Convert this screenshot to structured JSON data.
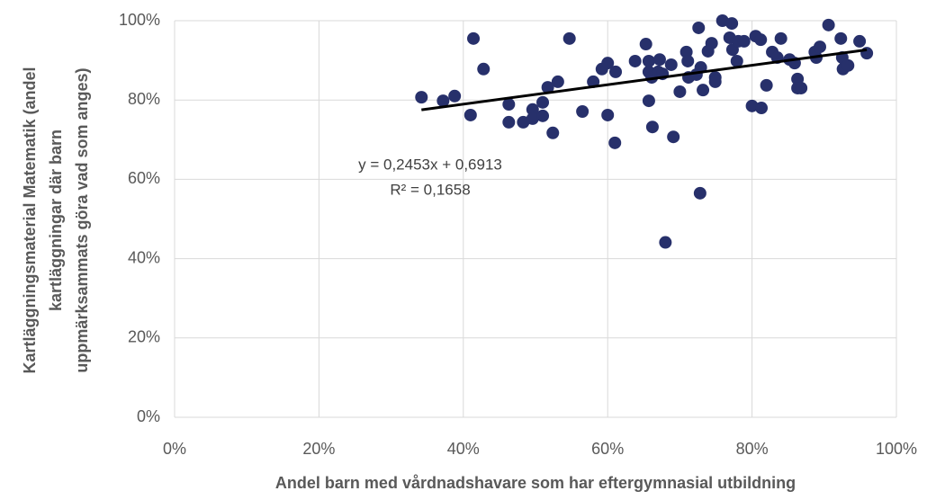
{
  "chart_data": {
    "type": "scatter",
    "x_label": "Andel barn med vårdnadshavare som har eftergymnasial utbildning",
    "y_label": [
      "Kartläggningsmaterial Matematik (andel",
      "kartläggningar där barn",
      "uppmärksammats göra vad som anges)"
    ],
    "color": "#27306b",
    "x": [
      34.2,
      37.2,
      38.8,
      41.4,
      42.8,
      41.0,
      46.3,
      46.3,
      48.3,
      49.6,
      49.6,
      51.0,
      51.0,
      51.7,
      52.4,
      53.1,
      54.7,
      56.5,
      58.0,
      59.2,
      60.0,
      60.0,
      61.1,
      61.0,
      63.8,
      65.3,
      65.7,
      65.7,
      65.7,
      66.1,
      67.0,
      67.2,
      67.6,
      66.2,
      68.8,
      69.1,
      70.0,
      70.9,
      71.1,
      71.2,
      72.3,
      72.6,
      72.9,
      73.2,
      72.8,
      68.0,
      73.9,
      74.4,
      74.9,
      74.9,
      75.9,
      77.2,
      76.9,
      77.3,
      77.9,
      78.1,
      78.9,
      80.0,
      80.5,
      81.2,
      81.3,
      82.0,
      82.8,
      83.5,
      84.0,
      85.2,
      85.9,
      86.3,
      86.3,
      86.8,
      88.7,
      88.9,
      89.4,
      90.6,
      92.3,
      92.5,
      92.6,
      93.3,
      94.9,
      95.9
    ],
    "values": [
      80.7,
      79.8,
      81.0,
      95.5,
      87.8,
      76.2,
      78.9,
      74.4,
      74.4,
      77.6,
      75.3,
      79.4,
      76.0,
      83.2,
      71.7,
      84.6,
      95.5,
      77.1,
      84.6,
      87.8,
      89.3,
      76.2,
      87.1,
      69.2,
      89.8,
      94.1,
      89.8,
      79.8,
      87.1,
      85.7,
      87.1,
      90.2,
      86.6,
      73.2,
      88.9,
      70.7,
      82.1,
      92.1,
      89.8,
      85.7,
      86.4,
      98.2,
      88.2,
      82.5,
      56.5,
      44.1,
      92.3,
      94.3,
      85.7,
      84.6,
      100,
      99.3,
      95.7,
      92.7,
      89.8,
      94.8,
      94.8,
      78.5,
      96.1,
      95.2,
      78.0,
      83.7,
      92.1,
      90.7,
      95.5,
      90.2,
      89.3,
      85.3,
      83.0,
      83.0,
      92.1,
      90.7,
      93.4,
      98.9,
      95.5,
      90.7,
      87.8,
      88.7,
      94.8,
      91.8
    ],
    "trendline": {
      "slope": 0.2453,
      "intercept": 69.13,
      "color": "#000000",
      "label": "y = 0,2453x + 0,6913",
      "r2_label": "R² = 0,1658"
    },
    "xlim": [
      0,
      100
    ],
    "xticks": [
      {
        "value": 0,
        "label": "0%"
      },
      {
        "value": 20,
        "label": "20%"
      },
      {
        "value": 40,
        "label": "40%"
      },
      {
        "value": 60,
        "label": "60%"
      },
      {
        "value": 80,
        "label": "80%"
      },
      {
        "value": 100,
        "label": "100%"
      }
    ],
    "ylim": [
      0,
      100
    ],
    "yticks": [
      {
        "value": 0,
        "label": "0%"
      },
      {
        "value": 20,
        "label": "20%"
      },
      {
        "value": 40,
        "label": "40%"
      },
      {
        "value": 60,
        "label": "60%"
      },
      {
        "value": 80,
        "label": "80%"
      },
      {
        "value": 100,
        "label": "100%"
      }
    ],
    "grid": true
  }
}
